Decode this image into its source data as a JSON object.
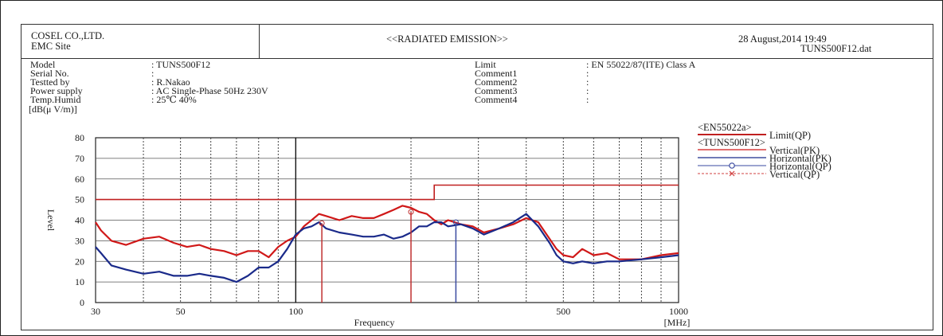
{
  "header": {
    "company": "COSEL CO.,LTD.",
    "site": "EMC Site",
    "title": "<<RADIATED EMISSION>>",
    "date": "28 August,2014 19:49",
    "file": "TUNS500F12.dat"
  },
  "info_left": [
    {
      "label": "Model",
      "value": ": TUNS500F12"
    },
    {
      "label": "Serial No.",
      "value": ":"
    },
    {
      "label": "Testted by",
      "value": ": R.Nakao"
    },
    {
      "label": "Power supply",
      "value": ": AC Single-Phase 50Hz 230V"
    },
    {
      "label": "Temp.Humid",
      "value": ": 25℃ 40%"
    }
  ],
  "info_right": [
    {
      "label": "Limit",
      "value": ": EN 55022/87(ITE) Class A"
    },
    {
      "label": "Comment1",
      "value": ":"
    },
    {
      "label": "Comment2",
      "value": ":"
    },
    {
      "label": "Comment3",
      "value": ":"
    },
    {
      "label": "Comment4",
      "value": ":"
    }
  ],
  "legend": {
    "group1": "<EN55022a>",
    "group2": "<TUNS500F12>",
    "items": [
      {
        "name": "Limit(QP)",
        "color": "#c02020",
        "style": "solid-thick"
      },
      {
        "name": "Vertical(PK)",
        "color": "#d01818",
        "style": "solid"
      },
      {
        "name": "Horizontal(PK)",
        "color": "#1a2a8a",
        "style": "solid"
      },
      {
        "name": "Horizontal(QP)",
        "color": "#3a4aa0",
        "style": "circle"
      },
      {
        "name": "Vertical(QP)",
        "color": "#d04040",
        "style": "cross"
      }
    ]
  },
  "chart_data": {
    "type": "line",
    "ylabel": "Level",
    "yunit": "[dB(μ V/m)]",
    "xlabel": "Frequency",
    "xunit": "[MHz]",
    "xscale": "log",
    "xlim": [
      30,
      1000
    ],
    "ylim": [
      0,
      80
    ],
    "xticks": [
      30,
      50,
      100,
      500,
      1000
    ],
    "yticks": [
      0,
      10,
      20,
      30,
      40,
      50,
      60,
      70,
      80
    ],
    "grid": true,
    "legend_position": "right",
    "limit_qp": [
      [
        30,
        50
      ],
      [
        230,
        50
      ],
      [
        230,
        57
      ],
      [
        1000,
        57
      ]
    ],
    "series": [
      {
        "name": "Vertical(PK)",
        "color": "#d01818",
        "points": [
          [
            30,
            39
          ],
          [
            31,
            35
          ],
          [
            33,
            30
          ],
          [
            36,
            28
          ],
          [
            40,
            31
          ],
          [
            44,
            32
          ],
          [
            48,
            29
          ],
          [
            52,
            27
          ],
          [
            56,
            28
          ],
          [
            60,
            26
          ],
          [
            65,
            25
          ],
          [
            70,
            23
          ],
          [
            75,
            25
          ],
          [
            80,
            25
          ],
          [
            85,
            22
          ],
          [
            90,
            27
          ],
          [
            95,
            30
          ],
          [
            100,
            32
          ],
          [
            105,
            37
          ],
          [
            110,
            40
          ],
          [
            115,
            43
          ],
          [
            120,
            42
          ],
          [
            130,
            40
          ],
          [
            140,
            42
          ],
          [
            150,
            41
          ],
          [
            160,
            41
          ],
          [
            170,
            43
          ],
          [
            180,
            45
          ],
          [
            190,
            47
          ],
          [
            200,
            46
          ],
          [
            210,
            44
          ],
          [
            220,
            43
          ],
          [
            230,
            40
          ],
          [
            240,
            38
          ],
          [
            250,
            40
          ],
          [
            270,
            38
          ],
          [
            290,
            37
          ],
          [
            310,
            34
          ],
          [
            340,
            36
          ],
          [
            370,
            38
          ],
          [
            400,
            41
          ],
          [
            430,
            39
          ],
          [
            460,
            31
          ],
          [
            480,
            26
          ],
          [
            500,
            23
          ],
          [
            530,
            22
          ],
          [
            560,
            26
          ],
          [
            600,
            23
          ],
          [
            650,
            24
          ],
          [
            700,
            21
          ],
          [
            800,
            21
          ],
          [
            900,
            23
          ],
          [
            1000,
            24
          ]
        ]
      },
      {
        "name": "Horizontal(PK)",
        "color": "#1a2a8a",
        "points": [
          [
            30,
            27
          ],
          [
            31,
            24
          ],
          [
            33,
            18
          ],
          [
            36,
            16
          ],
          [
            40,
            14
          ],
          [
            44,
            15
          ],
          [
            48,
            13
          ],
          [
            52,
            13
          ],
          [
            56,
            14
          ],
          [
            60,
            13
          ],
          [
            65,
            12
          ],
          [
            70,
            10
          ],
          [
            75,
            13
          ],
          [
            80,
            17
          ],
          [
            85,
            17
          ],
          [
            90,
            20
          ],
          [
            95,
            26
          ],
          [
            100,
            33
          ],
          [
            105,
            36
          ],
          [
            110,
            37
          ],
          [
            115,
            39
          ],
          [
            120,
            36
          ],
          [
            130,
            34
          ],
          [
            140,
            33
          ],
          [
            150,
            32
          ],
          [
            160,
            32
          ],
          [
            170,
            33
          ],
          [
            180,
            31
          ],
          [
            190,
            32
          ],
          [
            200,
            34
          ],
          [
            210,
            37
          ],
          [
            220,
            37
          ],
          [
            230,
            39
          ],
          [
            240,
            39
          ],
          [
            250,
            37
          ],
          [
            270,
            38
          ],
          [
            290,
            36
          ],
          [
            310,
            33
          ],
          [
            340,
            36
          ],
          [
            370,
            39
          ],
          [
            400,
            43
          ],
          [
            430,
            37
          ],
          [
            460,
            29
          ],
          [
            480,
            23
          ],
          [
            500,
            20
          ],
          [
            530,
            19
          ],
          [
            560,
            20
          ],
          [
            600,
            19
          ],
          [
            650,
            20
          ],
          [
            700,
            20
          ],
          [
            800,
            21
          ],
          [
            900,
            22
          ],
          [
            1000,
            23
          ]
        ]
      }
    ],
    "qp_markers": [
      {
        "name": "Vertical(QP)",
        "color": "#c03030",
        "freq": 117,
        "level": 38.5
      },
      {
        "name": "Vertical(QP)",
        "color": "#c03030",
        "freq": 200,
        "level": 44
      },
      {
        "name": "Horizontal(QP)",
        "color": "#3a4aa0",
        "freq": 262,
        "level": 39
      }
    ]
  }
}
